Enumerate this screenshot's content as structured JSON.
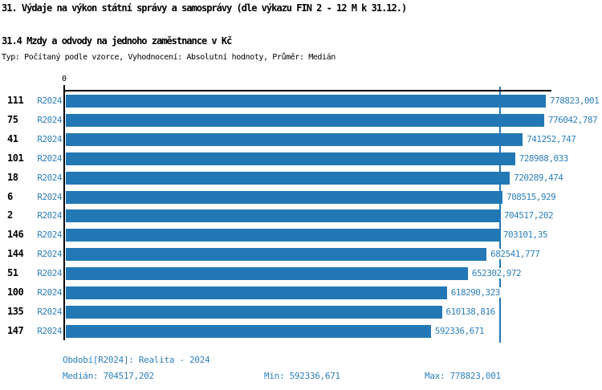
{
  "title": "31. Výdaje na výkon státní správy a samosprávy (dle výkazu FIN 2 - 12 M k 31.12.)",
  "subtitle": "31.4 Mzdy a odvody na jednoho zaměstnance v Kč",
  "meta_line": "Typ: Počítaný podle vzorce, Vyhodnocení: Absolutní hodnoty, Průměr: Medián",
  "colors": {
    "bar": "#2278b5",
    "blue_text": "#2f80bb",
    "axis": "#000000",
    "background": "#ffffff"
  },
  "chart_data": {
    "type": "bar",
    "orientation": "horizontal",
    "axis_zero_label": "0",
    "x_max": 778823.001,
    "median_value": 704517.202,
    "grid": false,
    "legend": false,
    "rows": [
      {
        "id": "111",
        "period": "R2024",
        "value": 778823.001,
        "label": "778823,001"
      },
      {
        "id": "75",
        "period": "R2024",
        "value": 776042.787,
        "label": "776042,787"
      },
      {
        "id": "41",
        "period": "R2024",
        "value": 741252.747,
        "label": "741252,747"
      },
      {
        "id": "101",
        "period": "R2024",
        "value": 728988.033,
        "label": "728988,033"
      },
      {
        "id": "18",
        "period": "R2024",
        "value": 720289.474,
        "label": "720289,474"
      },
      {
        "id": "6",
        "period": "R2024",
        "value": 708515.929,
        "label": "708515,929"
      },
      {
        "id": "2",
        "period": "R2024",
        "value": 704517.202,
        "label": "704517,202"
      },
      {
        "id": "146",
        "period": "R2024",
        "value": 703101.35,
        "label": "703101,35"
      },
      {
        "id": "144",
        "period": "R2024",
        "value": 682541.777,
        "label": "682541,777"
      },
      {
        "id": "51",
        "period": "R2024",
        "value": 652302.972,
        "label": "652302,972"
      },
      {
        "id": "100",
        "period": "R2024",
        "value": 618290.323,
        "label": "618290,323"
      },
      {
        "id": "135",
        "period": "R2024",
        "value": 610138.816,
        "label": "610138,816"
      },
      {
        "id": "147",
        "period": "R2024",
        "value": 592336.671,
        "label": "592336,671"
      }
    ]
  },
  "footer": {
    "period_line": "Období[R2024]: Realita - 2024",
    "median": "Medián: 704517,202",
    "min": "Min: 592336,671",
    "max": "Max: 778823,001"
  }
}
